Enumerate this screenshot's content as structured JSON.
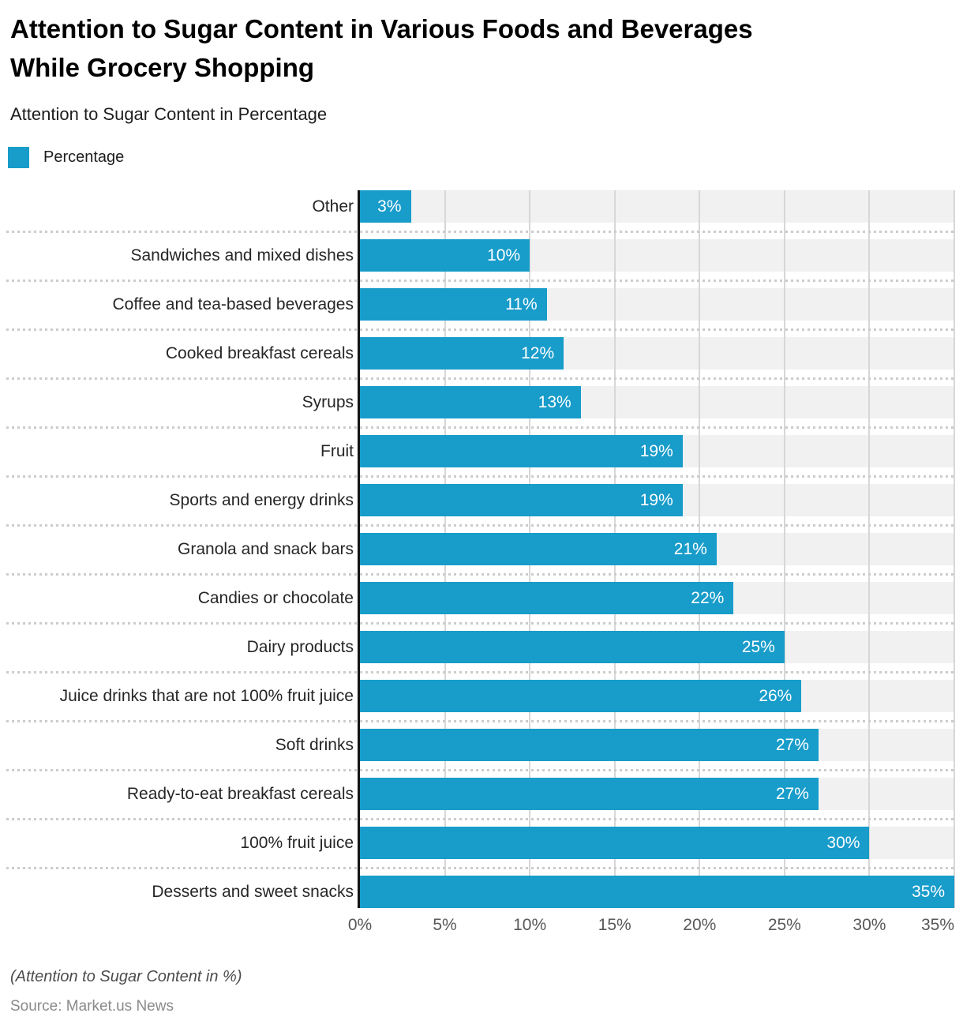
{
  "header": {
    "title": "Attention to Sugar Content in Various Foods and Beverages While Grocery Shopping",
    "title_lines": [
      "Attention to Sugar Content in Various Foods and Beverages",
      "While Grocery Shopping"
    ],
    "subtitle": "Attention to Sugar Content in Percentage",
    "legend": {
      "label": "Percentage",
      "color": "#189cca"
    }
  },
  "chart_data": {
    "type": "bar",
    "orientation": "horizontal",
    "title": "Attention to Sugar Content in Various Foods and Beverages While Grocery Shopping",
    "xlabel": "",
    "ylabel": "",
    "categories": [
      "Other",
      "Sandwiches and mixed dishes",
      "Coffee and tea-based beverages",
      "Cooked breakfast cereals",
      "Syrups",
      "Fruit",
      "Sports and energy drinks",
      "Granola and snack bars",
      "Candies or chocolate",
      "Dairy products",
      "Juice drinks that are not 100% fruit juice",
      "Soft drinks",
      "Ready-to-eat breakfast cereals",
      "100% fruit juice",
      "Desserts and sweet snacks"
    ],
    "values": [
      3,
      10,
      11,
      12,
      13,
      19,
      19,
      21,
      22,
      25,
      26,
      27,
      27,
      30,
      35
    ],
    "value_labels": [
      "3%",
      "10%",
      "11%",
      "12%",
      "13%",
      "19%",
      "19%",
      "21%",
      "22%",
      "25%",
      "26%",
      "27%",
      "27%",
      "30%",
      "35%"
    ],
    "x_ticks": [
      "0%",
      "5%",
      "10%",
      "15%",
      "20%",
      "25%",
      "30%",
      "35%"
    ],
    "xlim": [
      0,
      35
    ],
    "legend": [
      "Percentage"
    ],
    "legend_position": "top-left",
    "grid": "vertical gridlines every 5%, dotted horizontal row separators",
    "colors": {
      "bar": "#189cca",
      "row_band": "#f1f1f2",
      "gridline": "#d7d7d7",
      "axis": "#141414",
      "separator": "#cccccc",
      "value_label": "#ffffff"
    }
  },
  "footer": {
    "footnote": "(Attention to Sugar Content in %)",
    "source": "Source: Market.us News"
  }
}
